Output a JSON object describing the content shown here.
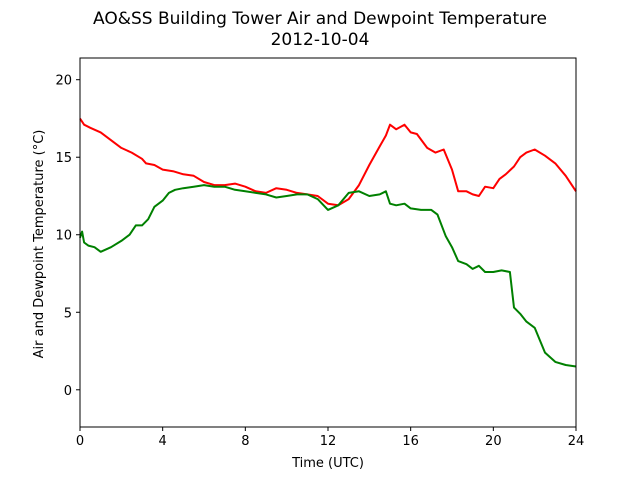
{
  "chart_data": {
    "type": "line",
    "title": "AO&SS Building Tower Air and Dewpoint Temperature",
    "subtitle": "2012-10-04",
    "xlabel": "Time (UTC)",
    "ylabel": "Air and Dewpoint Temperature (°C)",
    "xlim": [
      0,
      24
    ],
    "ylim": [
      -2.4,
      21.4
    ],
    "xticks": [
      0,
      4,
      8,
      12,
      16,
      20,
      24
    ],
    "xtick_labels": [
      "0",
      "4",
      "8",
      "12",
      "16",
      "20",
      "24"
    ],
    "yticks": [
      0,
      5,
      10,
      15,
      20
    ],
    "ytick_labels": [
      "0",
      "5",
      "10",
      "15",
      "20"
    ],
    "grid": false,
    "legend": "none",
    "series": [
      {
        "color": "#ff0000",
        "x": [
          0,
          0.2,
          0.5,
          1,
          1.5,
          2,
          2.5,
          3,
          3.2,
          3.6,
          4,
          4.5,
          5,
          5.5,
          6,
          6.5,
          7,
          7.5,
          8,
          8.5,
          9,
          9.5,
          10,
          10.5,
          11,
          11.5,
          12,
          12.5,
          13,
          13.5,
          14,
          14.5,
          14.8,
          15,
          15.3,
          15.7,
          16,
          16.3,
          16.8,
          17.2,
          17.6,
          18,
          18.3,
          18.7,
          19,
          19.3,
          19.6,
          20,
          20.3,
          20.6,
          21,
          21.3,
          21.6,
          22,
          22.5,
          23,
          23.5,
          24
        ],
        "y": [
          17.5,
          17.1,
          16.9,
          16.6,
          16.1,
          15.6,
          15.3,
          14.9,
          14.6,
          14.5,
          14.2,
          14.1,
          13.9,
          13.8,
          13.4,
          13.2,
          13.2,
          13.3,
          13.1,
          12.8,
          12.7,
          13.0,
          12.9,
          12.7,
          12.6,
          12.5,
          12.0,
          11.9,
          12.3,
          13.2,
          14.5,
          15.7,
          16.4,
          17.1,
          16.8,
          17.1,
          16.6,
          16.5,
          15.6,
          15.3,
          15.5,
          14.2,
          12.8,
          12.8,
          12.6,
          12.5,
          13.1,
          13.0,
          13.6,
          13.9,
          14.4,
          15.0,
          15.3,
          15.5,
          15.1,
          14.6,
          13.8,
          12.8
        ]
      },
      {
        "color": "#008000",
        "x": [
          0,
          0.1,
          0.2,
          0.4,
          0.7,
          1,
          1.5,
          2,
          2.4,
          2.7,
          3,
          3.3,
          3.6,
          4,
          4.3,
          4.6,
          5,
          5.5,
          6,
          6.5,
          7,
          7.5,
          8,
          8.5,
          9,
          9.5,
          10,
          10.5,
          11,
          11.5,
          12,
          12.5,
          13,
          13.5,
          14,
          14.5,
          14.8,
          15,
          15.3,
          15.7,
          16,
          16.5,
          17,
          17.3,
          17.7,
          18,
          18.3,
          18.7,
          19,
          19.3,
          19.6,
          20,
          20.4,
          20.8,
          21,
          21.3,
          21.6,
          22,
          22.5,
          23,
          23.5,
          24
        ],
        "y": [
          9.8,
          10.2,
          9.5,
          9.3,
          9.2,
          8.9,
          9.2,
          9.6,
          10.0,
          10.6,
          10.6,
          11.0,
          11.8,
          12.2,
          12.7,
          12.9,
          13.0,
          13.1,
          13.2,
          13.1,
          13.1,
          12.9,
          12.8,
          12.7,
          12.6,
          12.4,
          12.5,
          12.6,
          12.6,
          12.3,
          11.6,
          11.9,
          12.7,
          12.8,
          12.5,
          12.6,
          12.8,
          12.0,
          11.9,
          12.0,
          11.7,
          11.6,
          11.6,
          11.3,
          9.9,
          9.2,
          8.3,
          8.1,
          7.8,
          8.0,
          7.6,
          7.6,
          7.7,
          7.6,
          5.3,
          4.9,
          4.4,
          4.0,
          2.4,
          1.8,
          1.6,
          1.5
        ]
      }
    ]
  }
}
